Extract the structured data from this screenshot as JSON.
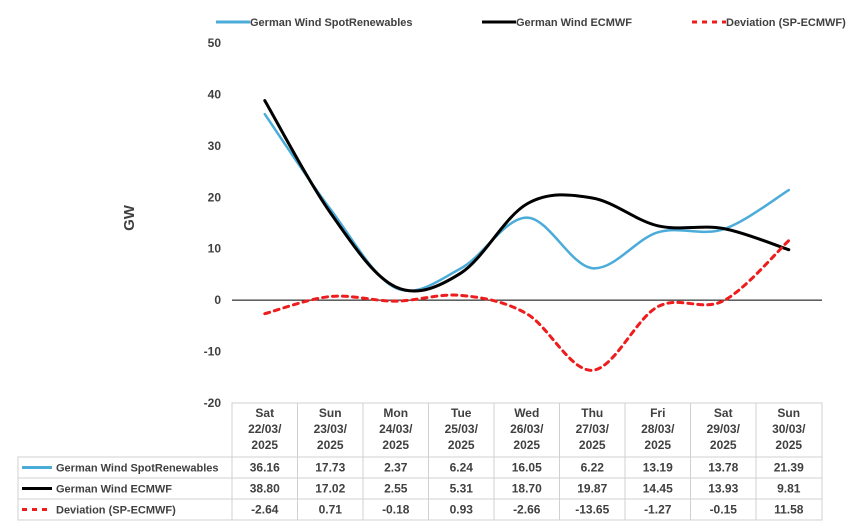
{
  "chart_data": {
    "type": "line",
    "title": "",
    "ylabel": "GW",
    "ylim": [
      -20,
      50
    ],
    "yticks": [
      50,
      40,
      30,
      20,
      10,
      0,
      -10,
      -20
    ],
    "categories": [
      [
        "Sat",
        "22/03/",
        "2025"
      ],
      [
        "Sun",
        "23/03/",
        "2025"
      ],
      [
        "Mon",
        "24/03/",
        "2025"
      ],
      [
        "Tue",
        "25/03/",
        "2025"
      ],
      [
        "Wed",
        "26/03/",
        "2025"
      ],
      [
        "Thu",
        "27/03/",
        "2025"
      ],
      [
        "Fri",
        "28/03/",
        "2025"
      ],
      [
        "Sat",
        "29/03/",
        "2025"
      ],
      [
        "Sun",
        "30/03/",
        "2025"
      ]
    ],
    "series": [
      {
        "name": "German Wind SpotRenewables",
        "color": "#4bacd9",
        "style": "solid",
        "values": [
          36.16,
          17.73,
          2.37,
          6.24,
          16.05,
          6.22,
          13.19,
          13.78,
          21.39
        ],
        "labels": [
          "36.16",
          "17.73",
          "2.37",
          "6.24",
          "16.05",
          "6.22",
          "13.19",
          "13.78",
          "21.39"
        ]
      },
      {
        "name": "German Wind ECMWF",
        "color": "#000000",
        "style": "solid",
        "values": [
          38.8,
          17.02,
          2.55,
          5.31,
          18.7,
          19.87,
          14.45,
          13.93,
          9.81
        ],
        "labels": [
          "38.80",
          "17.02",
          "2.55",
          "5.31",
          "18.70",
          "19.87",
          "14.45",
          "13.93",
          "9.81"
        ]
      },
      {
        "name": "Deviation (SP-ECMWF)",
        "color": "#ee1c1c",
        "style": "dashed",
        "values": [
          -2.64,
          0.71,
          -0.18,
          0.93,
          -2.66,
          -13.65,
          -1.27,
          -0.15,
          11.58
        ],
        "labels": [
          "-2.64",
          "0.71",
          "-0.18",
          "0.93",
          "-2.66",
          "-13.65",
          "-1.27",
          "-0.15",
          "11.58"
        ]
      }
    ],
    "legend_position": "top",
    "grid": false
  }
}
